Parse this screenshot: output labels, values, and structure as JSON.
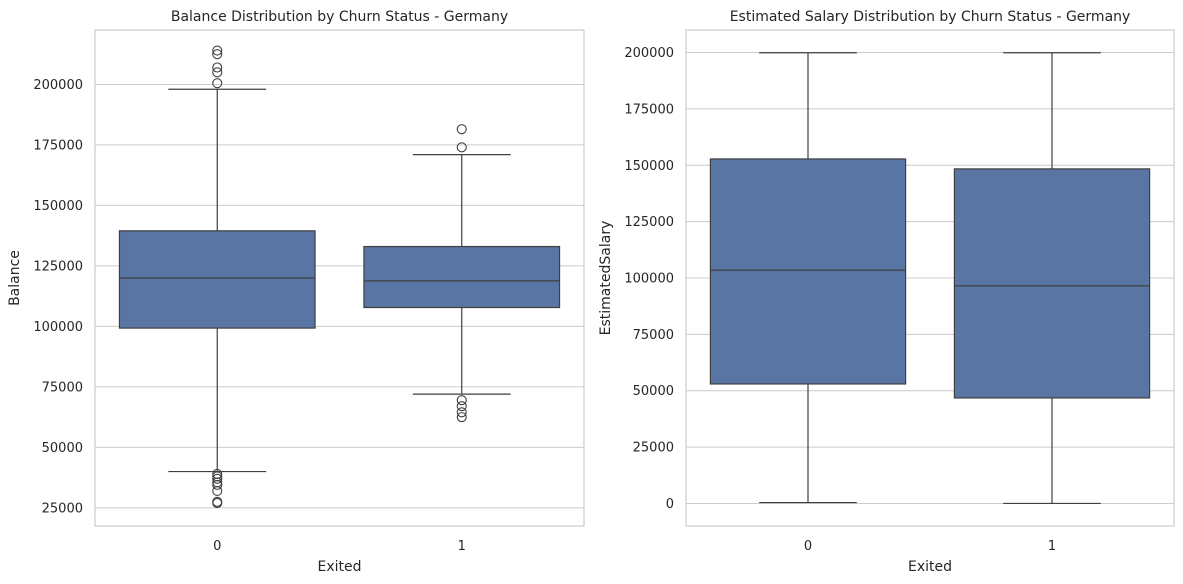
{
  "chart_data": [
    {
      "type": "box",
      "title": "Balance Distribution by Churn Status - Germany",
      "xlabel": "Exited",
      "ylabel": "Balance",
      "categories": [
        "0",
        "1"
      ],
      "ylim": [
        17500,
        222500
      ],
      "yticks": [
        25000,
        50000,
        75000,
        100000,
        125000,
        150000,
        175000,
        200000
      ],
      "grid": true,
      "color": "#5975a4",
      "boxes": [
        {
          "category": "0",
          "whisker_low": 40000,
          "q1": 99300,
          "median": 120000,
          "q3": 139500,
          "whisker_high": 198000,
          "fliers": [
            214000,
            212500,
            207000,
            205000,
            200500,
            39000,
            38000,
            37000,
            35500,
            34500,
            32000,
            27500,
            27000
          ]
        },
        {
          "category": "1",
          "whisker_low": 72000,
          "q1": 107800,
          "median": 118800,
          "q3": 133000,
          "whisker_high": 171000,
          "fliers": [
            181500,
            174000,
            69500,
            67000,
            64500,
            62500
          ]
        }
      ]
    },
    {
      "type": "box",
      "title": "Estimated Salary Distribution by Churn Status - Germany",
      "xlabel": "Exited",
      "ylabel": "EstimatedSalary",
      "categories": [
        "0",
        "1"
      ],
      "ylim": [
        -10000,
        210000
      ],
      "yticks": [
        0,
        25000,
        50000,
        75000,
        100000,
        125000,
        150000,
        175000,
        200000
      ],
      "grid": true,
      "color": "#5975a4",
      "boxes": [
        {
          "category": "0",
          "whisker_low": 400,
          "q1": 53000,
          "median": 103500,
          "q3": 152800,
          "whisker_high": 199900,
          "fliers": []
        },
        {
          "category": "1",
          "whisker_low": 0,
          "q1": 46800,
          "median": 96500,
          "q3": 148400,
          "whisker_high": 199900,
          "fliers": []
        }
      ]
    }
  ]
}
